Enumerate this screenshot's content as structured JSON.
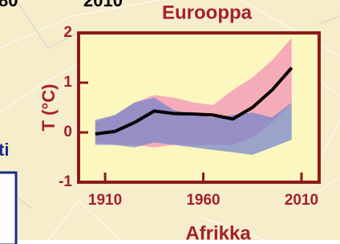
{
  "chart_data": {
    "type": "band-line",
    "title": "Eurooppa",
    "y_label": "T (°C)",
    "x": [
      1905,
      1915,
      1925,
      1935,
      1945,
      1955,
      1965,
      1975,
      1985,
      1995,
      2005
    ],
    "line": {
      "color": "#000000",
      "values": [
        -0.03,
        0.02,
        0.2,
        0.43,
        0.38,
        0.37,
        0.35,
        0.27,
        0.5,
        0.85,
        1.3
      ]
    },
    "bands": [
      {
        "color": "#f48cb6",
        "upper": [
          0.2,
          0.35,
          0.6,
          0.75,
          0.7,
          0.6,
          0.55,
          0.85,
          1.1,
          1.45,
          1.9
        ],
        "lower": [
          -0.2,
          -0.25,
          -0.25,
          -0.3,
          -0.25,
          -0.25,
          -0.25,
          -0.25,
          -0.1,
          0.2,
          0.6
        ]
      },
      {
        "color": "#6f82cc",
        "upper": [
          0.25,
          0.35,
          0.6,
          0.7,
          0.45,
          0.35,
          0.3,
          0.35,
          0.4,
          0.3,
          0.6
        ],
        "lower": [
          -0.25,
          -0.25,
          -0.3,
          -0.2,
          -0.25,
          -0.3,
          -0.35,
          -0.4,
          -0.45,
          -0.3,
          -0.15
        ]
      }
    ],
    "xlim": [
      1896.5,
      2019
    ],
    "ylim": [
      -1,
      2
    ],
    "xticks": [
      1910,
      1960,
      2010
    ],
    "yticks": [
      -1,
      0,
      1,
      2
    ]
  },
  "background_texts": {
    "top_left": "80",
    "top_center": "2010",
    "left": "ti",
    "bottom": "Afrikka"
  }
}
